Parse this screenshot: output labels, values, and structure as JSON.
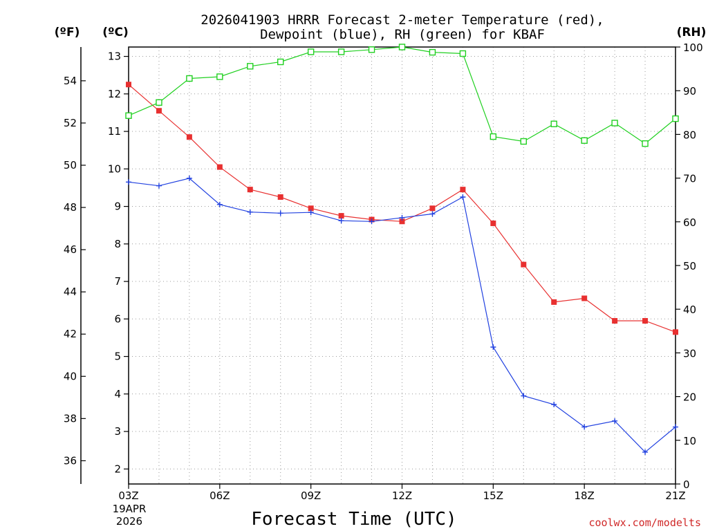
{
  "chart_data": {
    "type": "line",
    "title_line1": "2026041903 HRRR Forecast 2-meter Temperature (red),",
    "title_line2": "Dewpoint (blue), RH (green) for KBAF",
    "xlabel": "Forecast Time (UTC)",
    "x_start_label": [
      "19APR",
      "2026"
    ],
    "x_ticks": [
      "03Z",
      "06Z",
      "09Z",
      "12Z",
      "15Z",
      "18Z",
      "21Z"
    ],
    "x_hours": [
      3,
      4,
      5,
      6,
      7,
      8,
      9,
      10,
      11,
      12,
      13,
      14,
      15,
      16,
      17,
      18,
      19,
      20,
      21
    ],
    "left_f_axis": {
      "label": "(ºF)",
      "ticks": [
        "36",
        "38",
        "40",
        "42",
        "44",
        "46",
        "48",
        "50",
        "52",
        "54"
      ],
      "ylim": [
        34.9,
        55.6
      ]
    },
    "left_c_axis": {
      "label": "(ºC)",
      "ticks": [
        "2",
        "3",
        "4",
        "5",
        "6",
        "7",
        "8",
        "9",
        "10",
        "11",
        "12",
        "13"
      ],
      "ylim": [
        1.6,
        13.25
      ]
    },
    "right_rh_axis": {
      "label": "(RH)",
      "ticks": [
        "0",
        "10",
        "20",
        "30",
        "40",
        "50",
        "60",
        "70",
        "80",
        "90",
        "100"
      ],
      "ylim": [
        0,
        100
      ]
    },
    "grid": true,
    "series": [
      {
        "axis": "celsius",
        "color": "#e83030",
        "marker": "filled-square",
        "values": [
          12.25,
          11.55,
          10.85,
          10.05,
          9.45,
          9.25,
          8.95,
          8.75,
          8.65,
          8.6,
          8.95,
          9.45,
          8.55,
          7.45,
          6.45,
          6.55,
          5.95,
          5.95,
          5.65
        ]
      },
      {
        "axis": "celsius",
        "color": "#2040e0",
        "marker": "plus",
        "values": [
          9.65,
          9.55,
          9.75,
          9.05,
          8.85,
          8.82,
          8.84,
          8.62,
          8.6,
          8.7,
          8.8,
          9.25,
          5.25,
          3.95,
          3.72,
          3.12,
          3.28,
          2.45,
          3.12
        ]
      },
      {
        "axis": "rh",
        "color": "#20d020",
        "marker": "open-square",
        "values": [
          84.3,
          87.3,
          92.8,
          93.2,
          95.6,
          96.6,
          98.9,
          98.9,
          99.4,
          100,
          98.8,
          98.5,
          79.5,
          78.4,
          82.4,
          78.6,
          82.6,
          77.9,
          83.6
        ]
      }
    ]
  },
  "watermark": "coolwx.com/modelts",
  "colors": {
    "temp": "#e83030",
    "dewpoint": "#2040e0",
    "rh": "#20d020",
    "watermark": "#d02828"
  }
}
